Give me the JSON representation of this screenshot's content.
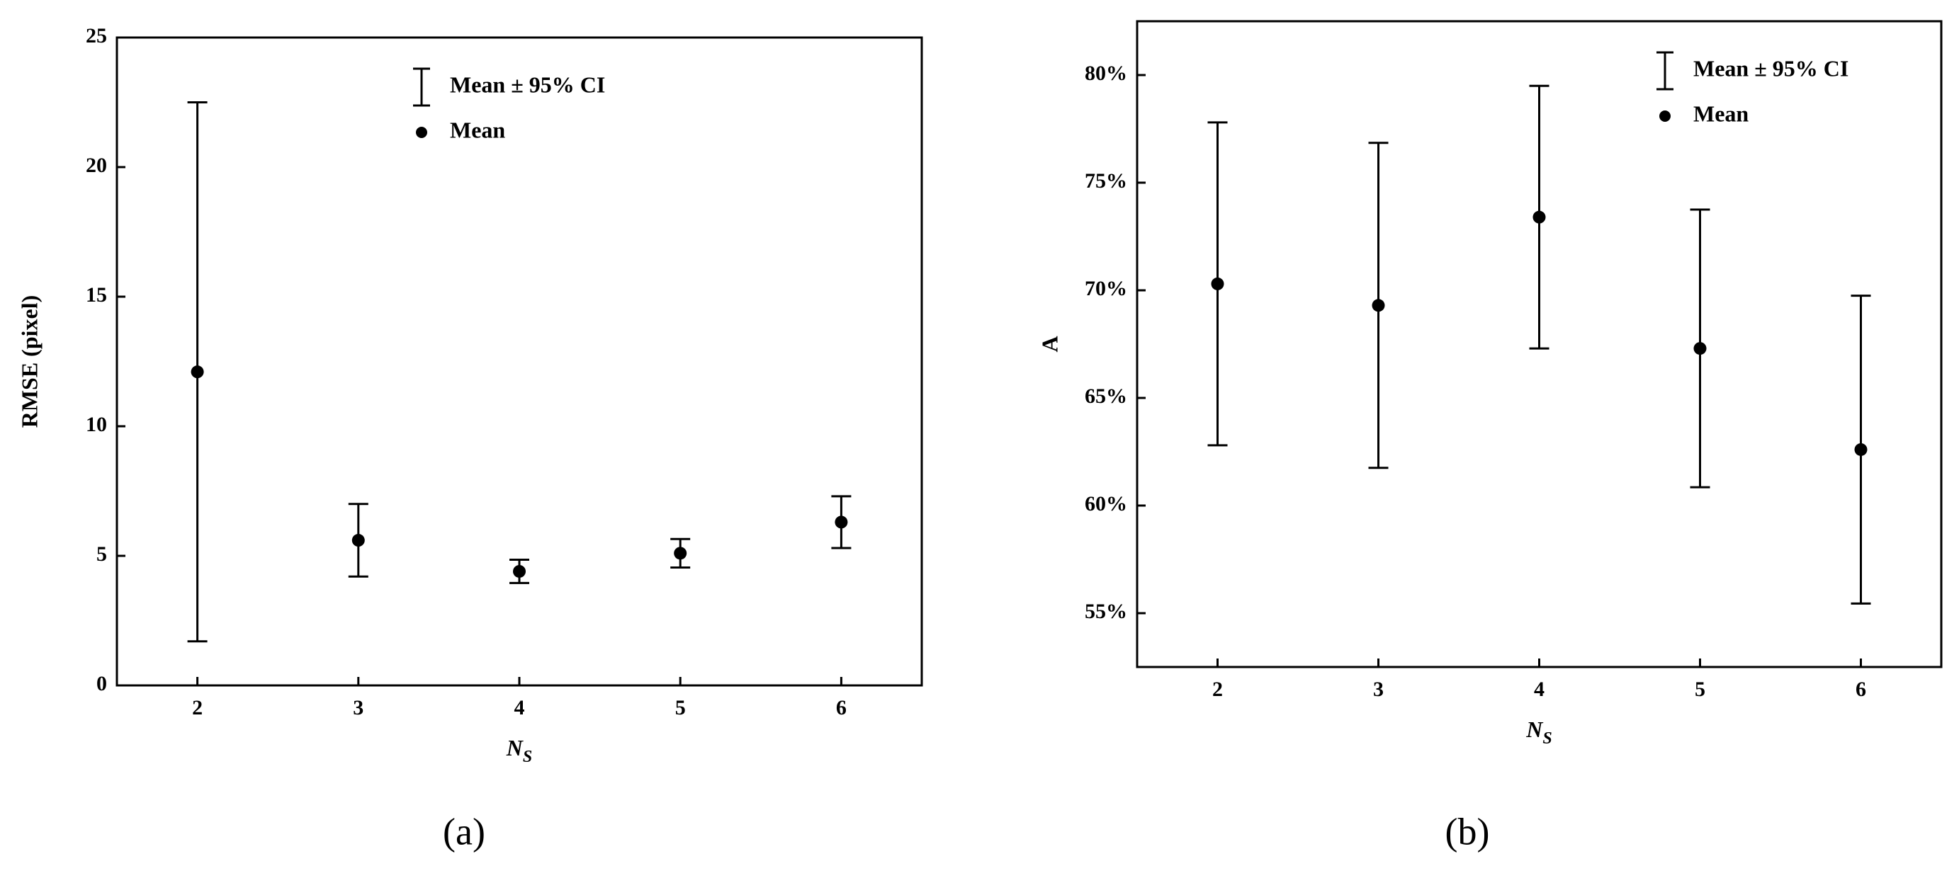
{
  "chart_data": [
    {
      "type": "errorbar",
      "caption": "(a)",
      "y_label": "RMSE (pixel)",
      "x_label": "N",
      "x_label_subscript": "S",
      "x": [
        2,
        3,
        4,
        5,
        6
      ],
      "xlim": [
        1.5,
        6.5
      ],
      "xticks": [
        2,
        3,
        4,
        5,
        6
      ],
      "ylim": [
        0,
        25
      ],
      "yticks": [
        0,
        5,
        10,
        15,
        20,
        25
      ],
      "legend": "top-center",
      "series": [
        {
          "name": "Mean",
          "error_name": "Mean ± 95% CI",
          "color": "#000000",
          "values": [
            12.1,
            5.6,
            4.4,
            5.1,
            6.3
          ],
          "errors": [
            10.4,
            1.4,
            0.45,
            0.55,
            1.0
          ]
        }
      ]
    },
    {
      "type": "errorbar",
      "caption": "(b)",
      "y_label": "A",
      "x_label": "N",
      "x_label_subscript": "S",
      "x": [
        2,
        3,
        4,
        5,
        6
      ],
      "xlim": [
        1.5,
        6.5
      ],
      "xticks": [
        2,
        3,
        4,
        5,
        6
      ],
      "ylim": [
        52.5,
        82.5
      ],
      "yticks": [
        {
          "value": 55,
          "label": "55%"
        },
        {
          "value": 60,
          "label": "60%"
        },
        {
          "value": 65,
          "label": "65%"
        },
        {
          "value": 70,
          "label": "70%"
        },
        {
          "value": 75,
          "label": "75%"
        },
        {
          "value": 80,
          "label": "80%"
        }
      ],
      "legend": "top-right",
      "series": [
        {
          "name": "Mean",
          "error_name": "Mean ± 95% CI",
          "color": "#000000",
          "values": [
            70.3,
            69.3,
            73.4,
            67.3,
            62.6
          ],
          "errors": [
            7.5,
            7.55,
            6.1,
            6.45,
            7.15
          ]
        }
      ]
    }
  ]
}
